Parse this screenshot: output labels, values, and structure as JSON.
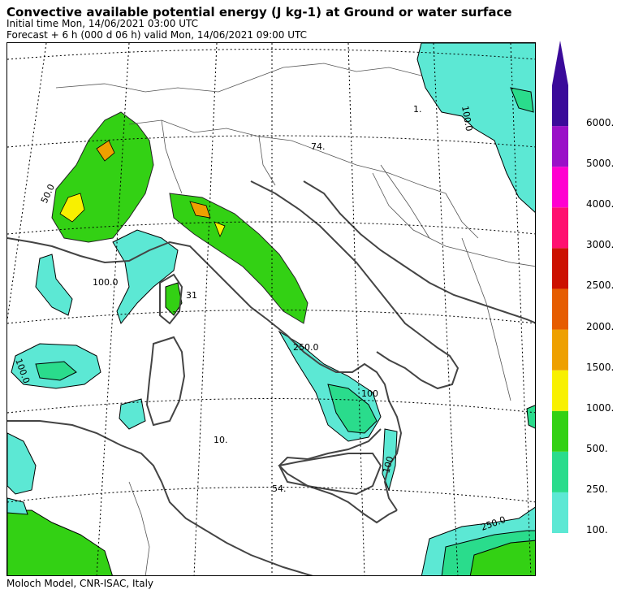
{
  "header": {
    "title": "Convective available potential energy (J kg-1) at Ground or water surface",
    "initial_time": "Initial time  Mon, 14/06/2021  03:00 UTC",
    "forecast": "Forecast  +   6 h  (000 d 06 h)  valid Mon, 14/06/2021 09:00 UTC"
  },
  "footer": {
    "credit": "Moloch Model, CNR-ISAC, Italy"
  },
  "legend": {
    "levels": [
      {
        "label": "100.",
        "color": "#5ce8d4"
      },
      {
        "label": "250.",
        "color": "#2adc8c"
      },
      {
        "label": "500.",
        "color": "#33d114"
      },
      {
        "label": "1000.",
        "color": "#f8f000"
      },
      {
        "label": "1500.",
        "color": "#eea000"
      },
      {
        "label": "2000.",
        "color": "#e65c00"
      },
      {
        "label": "2500.",
        "color": "#cc1000"
      },
      {
        "label": "3000.",
        "color": "#ff1070"
      },
      {
        "label": "4000.",
        "color": "#ff00d0"
      },
      {
        "label": "5000.",
        "color": "#9a10c8"
      },
      {
        "label": "6000.",
        "color": "#3a0a9a"
      }
    ]
  },
  "map_labels": {
    "l1": "1.",
    "l2": "74.",
    "l3": "100.0",
    "l4": "100.0",
    "l5": "100.0",
    "l6": "50.0",
    "l7": "250.0",
    "l8": "100",
    "l9": "10.",
    "l10": "54.",
    "l11": "31",
    "l12": "250.0",
    "l13": "100"
  }
}
